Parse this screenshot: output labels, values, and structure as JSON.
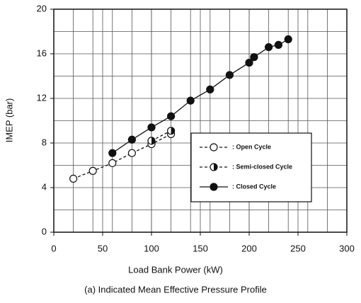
{
  "chart_data": {
    "type": "line",
    "x_label": "Load Bank Power (kW)",
    "y_label": "IMEP (bar)",
    "caption": "(a) Indicated Mean Effective Pressure Profile",
    "xlim": [
      0,
      300
    ],
    "xticks": [
      0,
      50,
      100,
      150,
      200,
      250,
      300
    ],
    "ylim": [
      0,
      20
    ],
    "yticks": [
      0,
      4,
      8,
      12,
      16,
      20
    ],
    "xminorticks": [
      20,
      40,
      60,
      80,
      100,
      120,
      140,
      160,
      180,
      200,
      220,
      240,
      260,
      280
    ],
    "yminorticks": [
      2,
      6,
      10,
      14,
      18
    ],
    "grid": true,
    "legend": "center-right",
    "series": [
      {
        "name": ": Open Cycle",
        "color": "#111111",
        "marker": "open",
        "dashed": true,
        "x": [
          20,
          40,
          60,
          80,
          100,
          120
        ],
        "values": [
          4.8,
          5.5,
          6.2,
          7.1,
          7.9,
          8.8
        ]
      },
      {
        "name": ": Semi-closed Cycle",
        "color": "#111111",
        "marker": "half",
        "dashed": true,
        "x": [
          100,
          120
        ],
        "values": [
          8.2,
          9.1
        ]
      },
      {
        "name": ": Closed Cycle",
        "color": "#111111",
        "marker": "filled",
        "dashed": false,
        "x": [
          60,
          80,
          100,
          120,
          140,
          160,
          180,
          200,
          205,
          220,
          230,
          240
        ],
        "values": [
          7.1,
          8.3,
          9.4,
          10.4,
          11.8,
          12.8,
          14.1,
          15.2,
          15.7,
          16.6,
          16.8,
          17.3
        ]
      }
    ]
  }
}
